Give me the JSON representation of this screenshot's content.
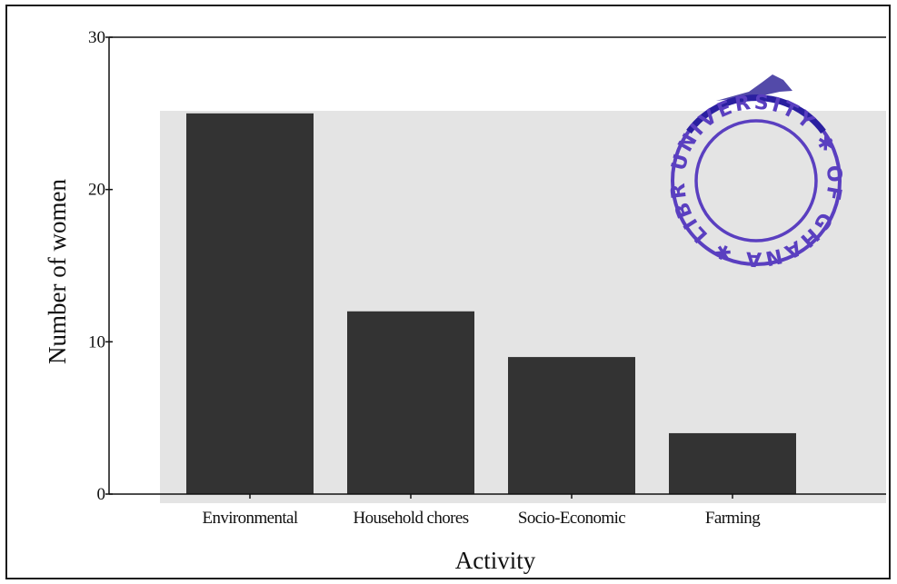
{
  "chart_data": {
    "type": "bar",
    "title": "",
    "xlabel": "Activity",
    "ylabel": "Number of women",
    "categories": [
      "Environmental",
      "Household chores",
      "Socio-Economic",
      "Farming"
    ],
    "values": [
      25,
      12,
      9,
      4
    ],
    "ylim": [
      0,
      30
    ],
    "yticks": [
      0,
      10,
      20,
      30
    ],
    "grid": false,
    "bar_color": "#333333",
    "plot_background": "#e4e4e4"
  },
  "stamp": {
    "text": "UNIVERSITY OF GHANA LIBRARY",
    "color": "#5a3fc0"
  }
}
